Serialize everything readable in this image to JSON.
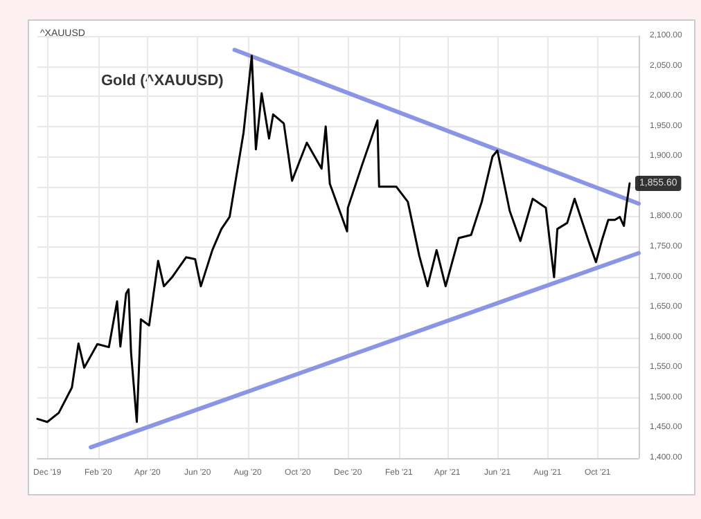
{
  "chart_data": {
    "type": "line",
    "title": "Gold (^XAUUSD)",
    "annotations": [
      "^XAUUSD",
      {
        "text": "1,855.60",
        "x": "2021-11-09",
        "y": 1855.6
      }
    ],
    "xlim": [
      "2019-11-19",
      "2021-11-20"
    ],
    "xticks": [
      {
        "value": "2019-12-01",
        "label": "Dec '19"
      },
      {
        "value": "2020-02-01",
        "label": "Feb '20"
      },
      {
        "value": "2020-04-01",
        "label": "Apr '20"
      },
      {
        "value": "2020-06-01",
        "label": "Jun '20"
      },
      {
        "value": "2020-08-01",
        "label": "Aug '20"
      },
      {
        "value": "2020-10-01",
        "label": "Oct '20"
      },
      {
        "value": "2020-12-01",
        "label": "Dec '20"
      },
      {
        "value": "2021-02-01",
        "label": "Feb '21"
      },
      {
        "value": "2021-04-01",
        "label": "Apr '21"
      },
      {
        "value": "2021-06-01",
        "label": "Jun '21"
      },
      {
        "value": "2021-08-01",
        "label": "Aug '21"
      },
      {
        "value": "2021-10-01",
        "label": "Oct '21"
      }
    ],
    "ylim": [
      1400,
      2100
    ],
    "yticks": [
      {
        "value": 1400,
        "label": "1,400.00"
      },
      {
        "value": 1450,
        "label": "1,450.00"
      },
      {
        "value": 1500,
        "label": "1,500.00"
      },
      {
        "value": 1550,
        "label": "1,550.00"
      },
      {
        "value": 1600,
        "label": "1,600.00"
      },
      {
        "value": 1650,
        "label": "1,650.00"
      },
      {
        "value": 1700,
        "label": "1,700.00"
      },
      {
        "value": 1750,
        "label": "1,750.00"
      },
      {
        "value": 1800,
        "label": "1,800.00"
      },
      {
        "value": 1850,
        "label": null
      },
      {
        "value": 1900,
        "label": "1,900.00"
      },
      {
        "value": 1950,
        "label": "1,950.00"
      },
      {
        "value": 2000,
        "label": "2,000.00"
      },
      {
        "value": 2050,
        "label": "2,050.00"
      },
      {
        "value": 2100,
        "label": "2,100.00"
      }
    ],
    "grid": true,
    "marker": "none",
    "line_style": "solid",
    "series": [
      {
        "color": "#000000",
        "x": [
          "2019-11-19",
          "2019-12-01",
          "2019-12-15",
          "2019-12-31",
          "2020-01-08",
          "2020-01-15",
          "2020-01-31",
          "2020-02-14",
          "2020-02-24",
          "2020-02-28",
          "2020-03-06",
          "2020-03-09",
          "2020-03-12",
          "2020-03-19",
          "2020-03-24",
          "2020-04-03",
          "2020-04-14",
          "2020-04-21",
          "2020-05-01",
          "2020-05-18",
          "2020-05-29",
          "2020-06-05",
          "2020-06-19",
          "2020-06-30",
          "2020-07-10",
          "2020-07-27",
          "2020-08-06",
          "2020-08-11",
          "2020-08-18",
          "2020-08-27",
          "2020-09-01",
          "2020-09-14",
          "2020-09-24",
          "2020-10-12",
          "2020-10-30",
          "2020-11-04",
          "2020-11-09",
          "2020-11-30",
          "2020-12-01",
          "2020-12-18",
          "2021-01-06",
          "2021-01-08",
          "2021-01-29",
          "2021-02-12",
          "2021-02-26",
          "2021-03-08",
          "2021-03-19",
          "2021-03-30",
          "2021-04-15",
          "2021-04-30",
          "2021-05-13",
          "2021-05-26",
          "2021-06-01",
          "2021-06-16",
          "2021-06-29",
          "2021-07-14",
          "2021-07-30",
          "2021-08-09",
          "2021-08-13",
          "2021-08-25",
          "2021-09-03",
          "2021-09-20",
          "2021-09-29",
          "2021-10-06",
          "2021-10-14",
          "2021-10-22",
          "2021-10-28",
          "2021-11-02",
          "2021-11-05",
          "2021-11-09"
        ],
        "values": [
          1465,
          1460,
          1475,
          1517,
          1590,
          1550,
          1589,
          1584,
          1660,
          1585,
          1673,
          1680,
          1575,
          1460,
          1630,
          1620,
          1727,
          1685,
          1700,
          1733,
          1730,
          1685,
          1745,
          1780,
          1800,
          1940,
          2067,
          1912,
          2005,
          1930,
          1970,
          1955,
          1860,
          1923,
          1880,
          1950,
          1855,
          1776,
          1815,
          1885,
          1960,
          1850,
          1850,
          1825,
          1735,
          1685,
          1745,
          1685,
          1765,
          1770,
          1825,
          1900,
          1910,
          1810,
          1760,
          1830,
          1815,
          1700,
          1780,
          1790,
          1830,
          1760,
          1725,
          1760,
          1795,
          1795,
          1800,
          1785,
          1818,
          1855.6
        ]
      },
      {
        "color": "#8b95e6",
        "x": [
          "2020-07-16",
          "2021-11-20"
        ],
        "values": [
          2077,
          1822
        ]
      },
      {
        "color": "#8b95e6",
        "x": [
          "2020-01-23",
          "2021-11-20"
        ],
        "values": [
          1418,
          1740
        ]
      }
    ]
  }
}
